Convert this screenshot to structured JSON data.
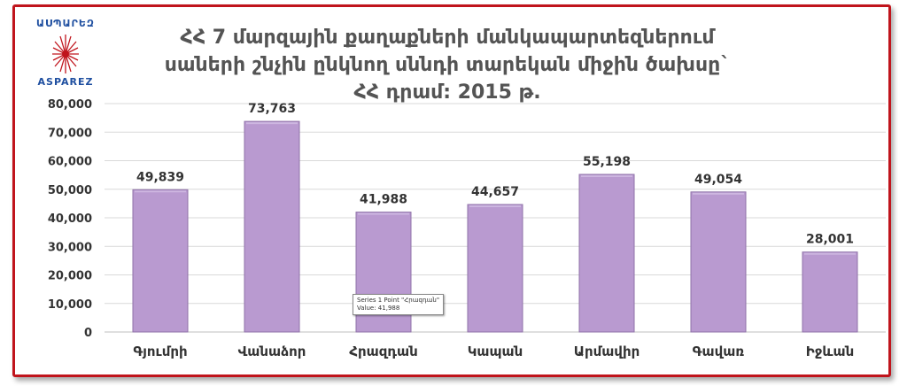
{
  "logo": {
    "top_text": "ԱՍՊԱՐԵԶ",
    "bottom_text": "ASPAREZ",
    "icon": "starburst-icon",
    "color": "#c0141c"
  },
  "frame_color": "#c0141c",
  "bar_color": "#b99ad0",
  "title_lines": [
    "ՀՀ 7 մարզային քաղաքների մանկապարտեզներում",
    "սաների շնչին ընկնող սննդի տարեկան միջին ծախսը`",
    "ՀՀ դրամ: 2015 թ."
  ],
  "tooltip": {
    "line1": "Series 1 Point \"Հրազդան\"",
    "line2": "Value: 41,988"
  },
  "chart_data": {
    "type": "bar",
    "title": "ՀՀ 7 մարզային քաղաքների մանկապարտեզներում սաների շնչին ընկնող սննդի տարեկան միջին ծախսը` ՀՀ դրամ: 2015 թ.",
    "categories": [
      "Գյումրի",
      "Վանաձոր",
      "Հրազդան",
      "Կապան",
      "Արմավիր",
      "Գավառ",
      "Իջևան"
    ],
    "series": [
      {
        "name": "Series 1",
        "values": [
          49839,
          73763,
          41988,
          44657,
          55198,
          49054,
          28001
        ]
      }
    ],
    "data_labels": [
      "49,839",
      "73,763",
      "41,988",
      "44,657",
      "55,198",
      "49,054",
      "28,001"
    ],
    "y_ticks": [
      "0",
      "10,000",
      "20,000",
      "30,000",
      "40,000",
      "50,000",
      "60,000",
      "70,000",
      "80,000"
    ],
    "ylim": [
      0,
      80000
    ],
    "xlabel": "",
    "ylabel": "",
    "grid": true,
    "legend": "none"
  }
}
